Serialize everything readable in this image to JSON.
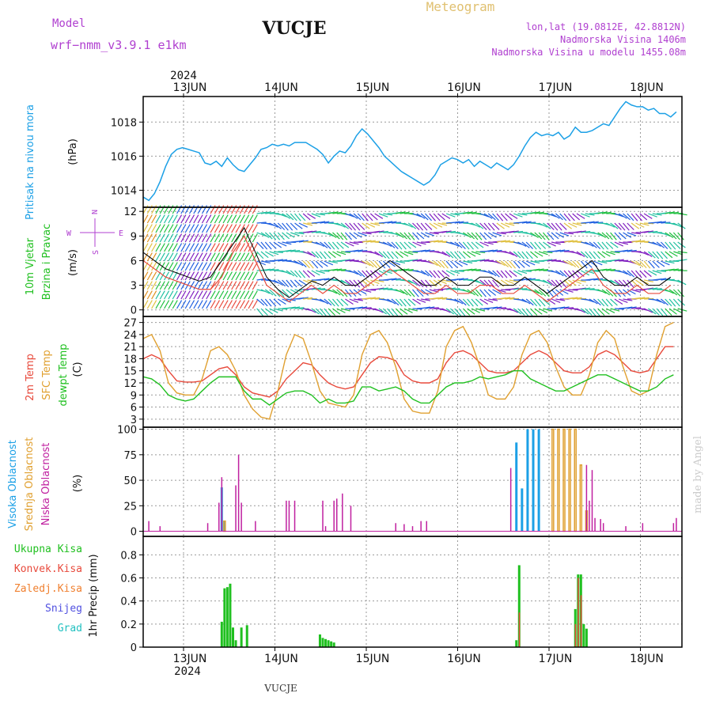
{
  "header": {
    "model_label": "Model",
    "model_name": "wrf−nmm_v3.9.1  e1km",
    "station": "VUCJE",
    "meteogram": "Meteogram",
    "lonlat": "lon,lat (19.0812E, 42.8812N)",
    "altitude": "Nadmorska Visina 1406m",
    "model_altitude": "Nadmorska Visina u modelu 1455.08m",
    "footer_station": "VUCJE",
    "made_by": "made by Angel",
    "year": "2024"
  },
  "colors": {
    "pressure": "#1ca0e6",
    "wind_label": "#20c020",
    "wind_speed_axis": "#000000",
    "t2m": "#e84a3c",
    "tsfc": "#e0a030",
    "dewpoint": "#20c020",
    "high_cloud": "#1ca0e6",
    "mid_cloud": "#e0a030",
    "low_cloud": "#c020a0",
    "total_precip": "#20c020",
    "conv_precip": "#e84a3c",
    "frozen_precip": "#f08030",
    "snow": "#5050e0",
    "hail": "#20c0c0",
    "header_purple": "#b040d0",
    "header_gold": "#e0c070"
  },
  "time_axis": {
    "days": [
      "13JUN",
      "14JUN",
      "15JUN",
      "16JUN",
      "17JUN",
      "18JUN"
    ],
    "bottom_days": [
      "13JUN",
      "14JUN",
      "15JUN",
      "16JUN",
      "17JUN",
      "18JUN"
    ]
  },
  "chart_data": [
    {
      "type": "line",
      "panel": "pressure",
      "ylabel": "Pritisak na nivou mora",
      "unit": "(hPa)",
      "yticks": [
        "1014",
        "1016",
        "1018"
      ],
      "ylim": [
        1013,
        1019.5
      ],
      "x_hours": [
        0,
        2,
        4,
        6,
        8,
        10,
        12,
        14,
        16,
        18,
        20,
        22,
        24,
        26,
        28,
        30,
        32,
        34,
        36,
        38,
        40,
        42,
        44,
        46,
        48,
        50,
        52,
        54,
        56,
        58,
        60,
        62,
        64,
        66,
        68,
        70,
        72,
        74,
        76,
        78,
        80,
        82,
        84,
        86,
        88,
        90,
        92,
        94,
        96,
        98,
        100,
        102,
        104,
        106,
        108,
        110,
        112,
        114,
        116,
        118,
        120,
        122,
        124,
        126,
        128,
        130,
        132,
        134,
        136,
        138,
        140,
        142,
        144,
        146,
        148,
        150,
        152,
        154,
        156,
        158,
        160,
        162,
        164,
        166,
        168,
        170,
        172,
        174,
        176,
        178,
        180,
        182,
        184,
        186,
        188,
        190
      ],
      "series": [
        {
          "values": [
            1013.6,
            1013.4,
            1013.8,
            1014.5,
            1015.4,
            1016.1,
            1016.4,
            1016.5,
            1016.4,
            1016.3,
            1016.2,
            1015.6,
            1015.5,
            1015.7,
            1015.4,
            1015.9,
            1015.5,
            1015.2,
            1015.1,
            1015.5,
            1015.9,
            1016.4,
            1016.5,
            1016.7,
            1016.6,
            1016.7,
            1016.6,
            1016.8,
            1016.8,
            1016.8,
            1016.6,
            1016.4,
            1016.1,
            1015.6,
            1016.0,
            1016.3,
            1016.2,
            1016.6,
            1017.2,
            1017.6,
            1017.3,
            1016.9,
            1016.5,
            1016.0,
            1015.7,
            1015.4,
            1015.1,
            1014.9,
            1014.7,
            1014.5,
            1014.3,
            1014.5,
            1014.9,
            1015.5,
            1015.7,
            1015.9,
            1015.8,
            1015.6,
            1015.8,
            1015.4,
            1015.7,
            1015.5,
            1015.3,
            1015.6,
            1015.4,
            1015.2,
            1015.5,
            1016.0,
            1016.6,
            1017.1,
            1017.4,
            1017.2,
            1017.3,
            1017.2,
            1017.4,
            1017.0,
            1017.2,
            1017.7,
            1017.4,
            1017.4,
            1017.5,
            1017.7,
            1017.9,
            1017.8,
            1018.3,
            1018.8,
            1019.2,
            1019.0,
            1018.9,
            1018.9,
            1018.7,
            1018.8,
            1018.5,
            1018.5,
            1018.3,
            1018.6
          ]
        }
      ]
    },
    {
      "type": "line",
      "panel": "wind",
      "ylabel_1": "10m Vjetar",
      "ylabel_2": "Brzina i Pravac",
      "unit": "(m/s)",
      "compass": [
        "N",
        "S",
        "W",
        "E"
      ],
      "yticks": [
        "0",
        "3",
        "6",
        "9",
        "12"
      ],
      "ylim": [
        -0.8,
        12.5
      ],
      "x_hours": [
        0,
        4,
        8,
        12,
        16,
        20,
        24,
        28,
        32,
        36,
        40,
        44,
        48,
        52,
        56,
        60,
        64,
        68,
        72,
        76,
        80,
        84,
        88,
        92,
        96,
        100,
        104,
        108,
        112,
        116,
        120,
        124,
        128,
        132,
        136,
        140,
        144,
        148,
        152,
        156,
        160,
        164,
        168,
        172,
        176,
        180,
        184,
        188
      ],
      "series": [
        {
          "name": "speed",
          "values": [
            6,
            5,
            4,
            3.5,
            3,
            2.5,
            2.5,
            4,
            7,
            9,
            6,
            3,
            2,
            1,
            2,
            3,
            2,
            3,
            2,
            2,
            3,
            4,
            5,
            4,
            3,
            2,
            2,
            3,
            2,
            2,
            3,
            3,
            2,
            2,
            3,
            2,
            1,
            2,
            3,
            4,
            5,
            3,
            2,
            2,
            3,
            2,
            2,
            3
          ]
        },
        {
          "name": "gust",
          "values": [
            7,
            6,
            5,
            4.5,
            4,
            3.5,
            4,
            6,
            8,
            10,
            7,
            4,
            2.5,
            1.5,
            2.5,
            3.5,
            3,
            4,
            3,
            3,
            4,
            5,
            6,
            5,
            4,
            3,
            3,
            4,
            3,
            3,
            4,
            4,
            3,
            3,
            4,
            3,
            2,
            3,
            4,
            5,
            6,
            4,
            3,
            3,
            4,
            3,
            3,
            4
          ]
        }
      ],
      "arrow_colors": [
        "#e0c040",
        "#e09020",
        "#e84a3c",
        "#20c040",
        "#20c0a0",
        "#2060e0",
        "#8020c0"
      ]
    },
    {
      "type": "line",
      "panel": "temperature",
      "ylabel_1": "2m Temp",
      "ylabel_2": "SFC Temp",
      "ylabel_3": "dewpt Temp",
      "unit": "(C)",
      "yticks": [
        "3",
        "6",
        "9",
        "12",
        "15",
        "18",
        "21",
        "24",
        "27"
      ],
      "ylim": [
        1,
        28.5
      ],
      "x_hours": [
        0,
        3,
        6,
        9,
        12,
        15,
        18,
        21,
        24,
        27,
        30,
        33,
        36,
        39,
        42,
        45,
        48,
        51,
        54,
        57,
        60,
        63,
        66,
        69,
        72,
        75,
        78,
        81,
        84,
        87,
        90,
        93,
        96,
        99,
        102,
        105,
        108,
        111,
        114,
        117,
        120,
        123,
        126,
        129,
        132,
        135,
        138,
        141,
        144,
        147,
        150,
        153,
        156,
        159,
        162,
        165,
        168,
        171,
        174,
        177,
        180,
        183,
        186,
        189
      ],
      "series": [
        {
          "name": "2m Temp",
          "values": [
            18,
            19,
            18,
            15,
            12.5,
            12.2,
            12.2,
            12.5,
            14,
            15.5,
            16,
            14,
            11,
            9.5,
            9,
            8.5,
            10,
            13,
            15,
            17,
            16.5,
            14,
            12,
            11,
            10.5,
            11,
            14,
            17,
            18.5,
            18.3,
            17.5,
            14,
            12.5,
            12,
            12,
            13,
            17,
            19.5,
            20,
            19,
            17,
            15,
            14.5,
            14.5,
            15,
            17,
            19,
            20,
            19,
            17,
            15,
            14.5,
            14.5,
            16,
            19,
            20,
            19,
            17,
            15,
            14.5,
            15,
            18,
            21,
            21
          ]
        },
        {
          "name": "SFC Temp",
          "values": [
            23,
            24,
            20,
            12,
            9.5,
            9,
            9,
            13,
            20,
            21,
            19,
            15,
            9,
            5.5,
            3.5,
            3,
            10,
            19,
            24,
            23,
            17,
            10,
            7,
            6.5,
            6,
            9,
            19,
            24,
            25,
            22,
            16,
            8,
            5,
            4.5,
            4.5,
            10,
            21,
            25,
            26,
            22,
            16,
            9,
            8,
            8,
            11,
            19,
            24,
            25,
            22,
            16,
            11,
            9,
            9,
            14,
            22,
            25,
            23,
            16,
            10,
            9,
            10,
            19,
            26,
            27
          ]
        },
        {
          "name": "dewpt Temp",
          "values": [
            13.5,
            13,
            11.5,
            9,
            8,
            7.5,
            8,
            10,
            12,
            13.5,
            13.5,
            13.5,
            10,
            8,
            8,
            6.5,
            8,
            9.5,
            10,
            10,
            9,
            7,
            8,
            7,
            7,
            7.5,
            11,
            11,
            10,
            10.5,
            11,
            10,
            8,
            7,
            7,
            9,
            11,
            12,
            12,
            12.5,
            13.5,
            13,
            13.5,
            14,
            15,
            15,
            13,
            12,
            11,
            10,
            10,
            11,
            12,
            13,
            14,
            14,
            13,
            12,
            11,
            10,
            10,
            11,
            13,
            14
          ]
        }
      ]
    },
    {
      "type": "bar",
      "panel": "clouds",
      "ylabel_1": "Visoka Oblacnost",
      "ylabel_2": "Srednja Oblacnost",
      "ylabel_3": "Niska Oblacnost",
      "unit": "(%)",
      "yticks": [
        "0",
        "25",
        "50",
        "75",
        "100"
      ],
      "ylim": [
        -5,
        102
      ],
      "series": [
        {
          "name": "Visoka Oblacnost",
          "x_hours": [
            28,
            29,
            133,
            135,
            137,
            139,
            141
          ],
          "values": [
            43,
            10,
            87,
            42,
            100,
            100,
            100
          ]
        },
        {
          "name": "Srednja Oblacnost",
          "x_hours": [
            29,
            146,
            148,
            150,
            152,
            154,
            156,
            158
          ],
          "values": [
            10,
            100,
            100,
            100,
            100,
            100,
            65,
            20
          ]
        },
        {
          "name": "Niska Oblacnost",
          "x_hours": [
            2,
            6,
            23,
            27,
            28,
            33,
            34,
            35,
            40,
            51,
            52,
            54,
            64,
            65,
            68,
            69,
            71,
            74,
            90,
            93,
            96,
            99,
            101,
            131,
            158,
            159,
            160,
            161,
            163,
            164,
            172,
            178,
            189,
            190
          ],
          "values": [
            10,
            5,
            8,
            28,
            53,
            45,
            75,
            28,
            10,
            30,
            30,
            30,
            30,
            5,
            30,
            32,
            37,
            25,
            8,
            7,
            5,
            10,
            10,
            62,
            65,
            30,
            60,
            13,
            12,
            8,
            5,
            8,
            8,
            13
          ]
        }
      ]
    },
    {
      "type": "bar",
      "panel": "precipitation",
      "ylabel_1": "Ukupna Kisa",
      "ylabel_2": "Konvek.Kisa",
      "ylabel_3": "Zaledj.Kisa",
      "ylabel_4": "Snijeg",
      "ylabel_5": "Grad",
      "unit": "1hr Precip (mm)",
      "yticks": [
        "0",
        "0.2",
        "0.4",
        "0.6",
        "0.8"
      ],
      "ylim": [
        0,
        0.96
      ],
      "series": [
        {
          "name": "Ukupna Kisa",
          "x_hours": [
            28,
            29,
            30,
            31,
            32,
            33,
            35,
            37,
            63,
            64,
            65,
            66,
            67,
            68,
            133,
            134,
            154,
            155,
            156,
            157,
            158
          ],
          "values": [
            0.22,
            0.51,
            0.52,
            0.55,
            0.17,
            0.06,
            0.17,
            0.19,
            0.11,
            0.08,
            0.07,
            0.06,
            0.05,
            0.04,
            0.06,
            0.71,
            0.33,
            0.63,
            0.63,
            0.2,
            0.16
          ]
        },
        {
          "name": "Konvek.Kisa",
          "x_hours": [
            134,
            154,
            155,
            156
          ],
          "values": [
            0.3,
            0.2,
            0.6,
            0.45
          ]
        }
      ]
    }
  ]
}
